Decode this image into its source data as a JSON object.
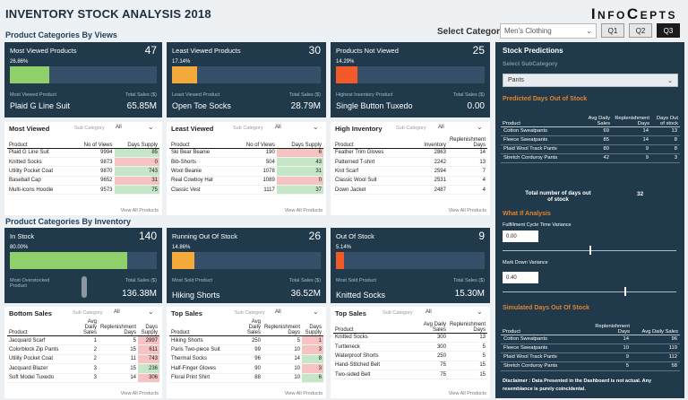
{
  "header": {
    "title": "INVENTORY STOCK ANALYSIS 2018",
    "logo": "InfoCepts"
  },
  "filters": {
    "category_label": "Select Category",
    "category_value": "Men's Clothing",
    "quarters": [
      "Q1",
      "Q2",
      "Q3"
    ],
    "active_quarter": "Q3"
  },
  "views_section": {
    "title": "Product Categories By Views"
  },
  "inventory_section": {
    "title": "Product Categories By Inventory"
  },
  "kpi_views": [
    {
      "title": "Most Viewed Products",
      "value": "47",
      "pct": "26.86%",
      "fill": 0.2686,
      "fill_color": "#8fd06a",
      "label_left": "Most Viewed Product",
      "label_right": "Total Sales ($)",
      "name": "Plaid G Line Suit",
      "sales": "65.85M"
    },
    {
      "title": "Least Viewed Products",
      "value": "30",
      "pct": "17.14%",
      "fill": 0.1714,
      "fill_color": "#f4a93b",
      "label_left": "Least Viewed Product",
      "label_right": "Total Sales ($)",
      "name": "Open Toe Socks",
      "sales": "28.79M"
    },
    {
      "title": "Products Not Viewed",
      "value": "25",
      "pct": "14.29%",
      "fill": 0.1429,
      "fill_color": "#f25a2a",
      "label_left": "Highest Inventory Product",
      "label_right": "Total Sales ($)",
      "name": "Single Button Tuxedo",
      "sales": "0.00"
    }
  ],
  "kpi_inventory": [
    {
      "title": "In Stock",
      "value": "140",
      "pct": "80.00%",
      "fill": 0.8,
      "fill_color": "#8fd06a",
      "label_left": "Most Overstocked Product",
      "label_right": "Total Sales ($)",
      "name": "",
      "sales": "136.38M"
    },
    {
      "title": "Running Out Of Stock",
      "value": "26",
      "pct": "14.86%",
      "fill": 0.1486,
      "fill_color": "#f4a93b",
      "label_left": "Most Sold Product",
      "label_right": "Total Sales ($)",
      "name": "Hiking Shorts",
      "sales": "36.52M"
    },
    {
      "title": "Out Of Stock",
      "value": "9",
      "pct": "5.14%",
      "fill": 0.0514,
      "fill_color": "#f25a2a",
      "label_left": "Most Sold Product",
      "label_right": "Total Sales ($)",
      "name": "Knitted Socks",
      "sales": "15.30M"
    }
  ],
  "most_viewed": {
    "title": "Most Viewed",
    "sub_label": "Sub Category",
    "sub_value": "All",
    "headers": [
      "Product",
      "No of Views",
      "Days Supply"
    ],
    "rows": [
      [
        "Plaid G Line Suit",
        "9994",
        "85"
      ],
      [
        "Knitted Socks",
        "9873",
        "0"
      ],
      [
        "Utility Pocket Coat",
        "9870",
        "743"
      ],
      [
        "Baseball Cap",
        "9652",
        "31"
      ],
      [
        "Multi-icons Hoodie",
        "9573",
        "75"
      ]
    ],
    "row_colors": [
      "g",
      "rd",
      "g",
      "rd",
      "g"
    ],
    "footer": "View All Products"
  },
  "least_viewed": {
    "title": "Least Viewed",
    "sub_label": "Sub Category",
    "sub_value": "All",
    "headers": [
      "Product",
      "No of Views",
      "Days Supply"
    ],
    "rows": [
      [
        "Ski Bear Beanie",
        "190",
        "6"
      ],
      [
        "Bib-Shorts",
        "504",
        "43"
      ],
      [
        "Wool Beanie",
        "1078",
        "31"
      ],
      [
        "Real Cowboy Hat",
        "1089",
        "0"
      ],
      [
        "Classic Vest",
        "1117",
        "37"
      ]
    ],
    "row_colors": [
      "rd",
      "g",
      "g",
      "rd",
      "g"
    ],
    "footer": "View All Products"
  },
  "high_inventory": {
    "title": "High Inventory",
    "sub_label": "Sub Category",
    "sub_value": "All",
    "headers": [
      "Product",
      "Inventory",
      "Replenishment Days"
    ],
    "rows": [
      [
        "Feather Trim Gloves",
        "2863",
        "14"
      ],
      [
        "Patterned T-shirt",
        "2242",
        "13"
      ],
      [
        "Knit Scarf",
        "2594",
        "7"
      ],
      [
        "Classic Wool Suit",
        "2531",
        "4"
      ],
      [
        "Down Jacket",
        "2487",
        "4"
      ]
    ],
    "footer": "View All Products"
  },
  "bottom_sales": {
    "title": "Bottom Sales",
    "sub_label": "Sub Category",
    "sub_value": "All",
    "headers": [
      "Product",
      "Avg Daily Sales",
      "Replenishment Days",
      "Days Supply"
    ],
    "rows": [
      [
        "Jacquard Scarf",
        "1",
        "5",
        "2997"
      ],
      [
        "Colorblock Zip Pants",
        "2",
        "15",
        "611"
      ],
      [
        "Utility Pocket Coat",
        "2",
        "11",
        "743"
      ],
      [
        "Jacquard Blazer",
        "3",
        "15",
        "236"
      ],
      [
        "Soft Model Tuxedo",
        "3",
        "14",
        "306"
      ]
    ],
    "row_colors": [
      "rd",
      "rd",
      "rd",
      "g",
      "rd"
    ],
    "footer": "View All Products"
  },
  "top_sales_1": {
    "title": "Top Sales",
    "sub_label": "Sub Category",
    "sub_value": "All",
    "headers": [
      "Product",
      "Avg Daily Sales",
      "Replenishment Days",
      "Days Supply"
    ],
    "rows": [
      [
        "Hiking Shorts",
        "250",
        "5",
        "1"
      ],
      [
        "Paris Two-piece Suit",
        "99",
        "10",
        "3"
      ],
      [
        "Thermal Socks",
        "96",
        "14",
        "8"
      ],
      [
        "Half-Finger Gloves",
        "90",
        "10",
        "3"
      ],
      [
        "Floral Print Shirt",
        "88",
        "10",
        "6"
      ]
    ],
    "row_colors": [
      "rd",
      "rd",
      "g",
      "rd",
      "g"
    ],
    "footer": "View All Products"
  },
  "top_sales_2": {
    "title": "Top Sales",
    "sub_label": "Sub Category",
    "sub_value": "All",
    "headers": [
      "Product",
      "Avg Daily Sales",
      "Replenishment Days"
    ],
    "rows": [
      [
        "Knitted Socks",
        "300",
        "13"
      ],
      [
        "Turtleneck",
        "300",
        "5"
      ],
      [
        "Waterproof Shorts",
        "250",
        "5"
      ],
      [
        "Hand-Stitched Belt",
        "75",
        "15"
      ],
      [
        "Two-sided Belt",
        "75",
        "15"
      ]
    ],
    "footer": "View All Products"
  },
  "stock_predictions": {
    "title": "Stock Predictions",
    "subcat_label": "Select SubCategory",
    "subcat_value": "Pants",
    "predicted_title": "Predicted Days Out of Stock",
    "predicted_headers": [
      "Product",
      "Avg Daily Sales",
      "Replenishment Days",
      "Days Out of stock"
    ],
    "predicted_rows": [
      [
        "Cotton Sweatpants",
        "69",
        "14",
        "13"
      ],
      [
        "Fleece Sweatpants",
        "85",
        "14",
        "8"
      ],
      [
        "Plaid Wool Track Pants",
        "80",
        "9",
        "8"
      ],
      [
        "Stretch Corduroy Pants",
        "42",
        "9",
        "3"
      ]
    ],
    "total_label": "Total number of days out of stock",
    "total_value": "32",
    "whatif_title": "What If Analysis",
    "fulfillment_label": "Fulfillment Cycle Time Variance",
    "fulfillment_value": "0.00",
    "fulfillment_slider": 0.5,
    "markdown_label": "Mark Down Variance",
    "markdown_value": "0.40",
    "markdown_slider": 0.7,
    "simulated_title": "Simulated Days Out Of Stock",
    "simulated_headers": [
      "Product",
      "Replenishment Days",
      "Avg Daily Sales"
    ],
    "simulated_rows": [
      [
        "Cotton Sweatpants",
        "14",
        "96"
      ],
      [
        "Fleece Sweatpants",
        "10",
        "119"
      ],
      [
        "Plaid Wool Track Pants",
        "9",
        "112"
      ],
      [
        "Stretch Corduroy Pants",
        "5",
        "58"
      ]
    ],
    "disclaimer": "Disclaimer : Data Presented in the Dashboard is not actual. Any resemblance is purely coincidental."
  },
  "colors": {
    "dark_panel": "#203a4c",
    "accent_orange": "#e1832e",
    "green": "#c6e6c8",
    "red": "#f6c3c3"
  }
}
